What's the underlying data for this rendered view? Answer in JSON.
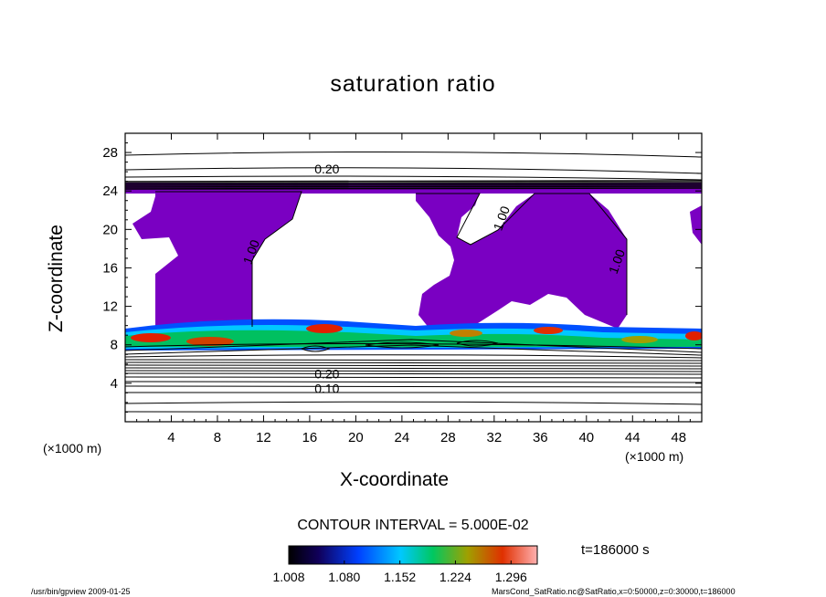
{
  "chart_data": {
    "type": "heatmap",
    "title": "saturation ratio",
    "xlabel": "X-coordinate",
    "ylabel": "Z-coordinate",
    "x_unit": "(×1000 m)",
    "y_unit": "(×1000 m)",
    "xlim": [
      0,
      50
    ],
    "ylim": [
      0,
      30
    ],
    "x_ticks": [
      4,
      8,
      12,
      16,
      20,
      24,
      28,
      32,
      36,
      40,
      44,
      48
    ],
    "y_ticks": [
      4,
      8,
      12,
      16,
      20,
      24,
      28
    ],
    "contour_interval": "CONTOUR INTERVAL = 5.000E-02",
    "time": "t=186000 s",
    "colorbar": {
      "ticks": [
        "1.008",
        "1.080",
        "1.152",
        "1.224",
        "1.296"
      ],
      "min": 1.008,
      "max": 1.33
    },
    "contour_labels": [
      {
        "text": "0.20",
        "x": 17.5,
        "z": 25.8
      },
      {
        "text": "1.00",
        "x": 11.3,
        "z": 17.5
      },
      {
        "text": "1.00",
        "x": 33.0,
        "z": 21.0
      },
      {
        "text": "1.00",
        "x": 43.0,
        "z": 16.5
      },
      {
        "text": "0.10",
        "x": 17.5,
        "z": 3.0
      },
      {
        "text": "0.20",
        "x": 17.5,
        "z": 4.5
      }
    ],
    "colors": {
      "supersaturated_region": "#7a00c2",
      "contour_line": "#000000"
    }
  },
  "footer": {
    "left": "/usr/bin/gpview   2009-01-25",
    "right": "MarsCond_SatRatio.nc@SatRatio,x=0:50000,z=0:30000,t=186000"
  }
}
